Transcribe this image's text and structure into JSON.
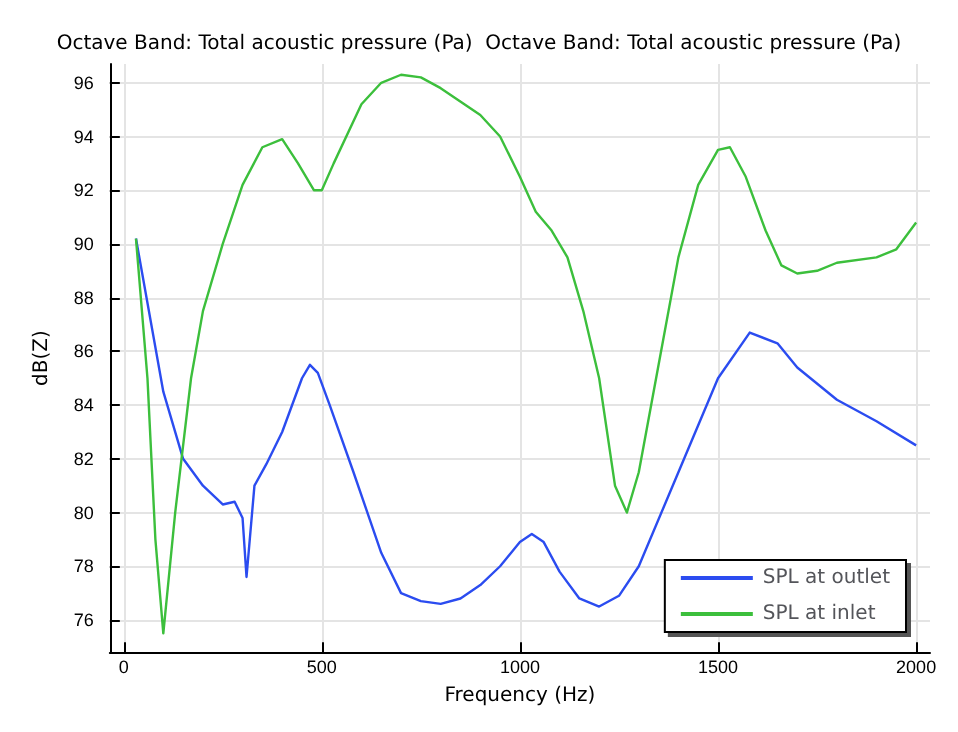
{
  "chart_data": {
    "type": "line",
    "title": "Octave Band: Total acoustic pressure (Pa)  Octave Band: Total acoustic pressure (Pa)",
    "xlabel": "Frequency (Hz)",
    "ylabel": "dB(Z)",
    "xlim": [
      -35,
      2035
    ],
    "ylim": [
      74.8,
      96.7
    ],
    "xticks": [
      0,
      500,
      1000,
      1500,
      2000
    ],
    "yticks": [
      76,
      78,
      80,
      82,
      84,
      86,
      88,
      90,
      92,
      94,
      96
    ],
    "grid": true,
    "legend": "bottom right",
    "marker": "none",
    "line_style": "solid",
    "series": [
      {
        "name": "SPL at outlet",
        "color": "#2b4cf0",
        "x": [
          31,
          100,
          150,
          200,
          250,
          280,
          300,
          310,
          330,
          360,
          400,
          450,
          470,
          490,
          520,
          580,
          650,
          700,
          750,
          800,
          850,
          900,
          950,
          1000,
          1030,
          1060,
          1100,
          1150,
          1200,
          1250,
          1300,
          1400,
          1500,
          1580,
          1650,
          1700,
          1800,
          1900,
          2000
        ],
        "values": [
          90.2,
          84.5,
          82,
          81,
          80.3,
          80.4,
          79.8,
          77.6,
          81,
          81.8,
          83,
          85,
          85.5,
          85.2,
          84,
          81.5,
          78.5,
          77,
          76.7,
          76.6,
          76.8,
          77.3,
          78,
          78.9,
          79.2,
          78.9,
          77.8,
          76.8,
          76.5,
          76.9,
          78,
          81.5,
          85,
          86.7,
          86.3,
          85.4,
          84.2,
          83.4,
          82.5
        ]
      },
      {
        "name": "SPL at inlet",
        "color": "#3cbf3c",
        "x": [
          31,
          60,
          80,
          100,
          130,
          170,
          200,
          250,
          300,
          350,
          400,
          440,
          480,
          500,
          530,
          600,
          650,
          700,
          750,
          800,
          900,
          950,
          1000,
          1040,
          1080,
          1120,
          1160,
          1200,
          1240,
          1270,
          1300,
          1350,
          1400,
          1450,
          1500,
          1530,
          1570,
          1620,
          1660,
          1700,
          1750,
          1800,
          1900,
          1950,
          2000
        ],
        "values": [
          90.2,
          85,
          79,
          75.5,
          80,
          85,
          87.5,
          90,
          92.2,
          93.6,
          93.9,
          93,
          92,
          92,
          93,
          95.2,
          96,
          96.3,
          96.2,
          95.8,
          94.8,
          94,
          92.5,
          91.2,
          90.5,
          89.5,
          87.5,
          85,
          81,
          80,
          81.5,
          85.5,
          89.5,
          92.2,
          93.5,
          93.6,
          92.5,
          90.5,
          89.2,
          88.9,
          89,
          89.3,
          89.5,
          89.8,
          90.8
        ]
      }
    ]
  }
}
